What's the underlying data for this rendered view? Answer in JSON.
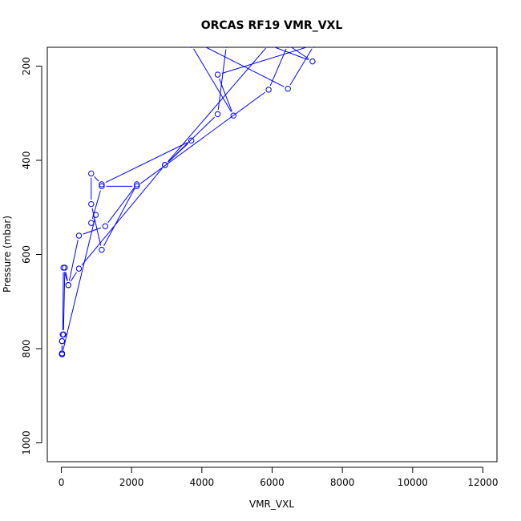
{
  "chart_data": {
    "type": "line",
    "title": "ORCAS RF19 VMR_VXL",
    "xlabel": "VMR_VXL",
    "ylabel": "Pressure (mbar)",
    "xlim": [
      -400,
      12400
    ],
    "ylim": [
      1040,
      160
    ],
    "y_inverted": true,
    "grid": false,
    "legend": "none",
    "x_ticks": [
      0,
      2000,
      4000,
      6000,
      8000,
      10000,
      12000
    ],
    "y_ticks": [
      200,
      400,
      600,
      800,
      1000
    ],
    "colors": {
      "series": "#0000ff",
      "axes": "#000000"
    },
    "markers": "open-circle",
    "series": [
      {
        "x": [
          3800,
          6450,
          7200,
          4450,
          4900,
          3700,
          4700,
          4450,
          2950,
          3700,
          1150,
          850,
          850,
          1150,
          2150,
          1250,
          500,
          200,
          60,
          40,
          20,
          20,
          20,
          980,
          850,
          1150,
          2150,
          5900,
          6450,
          7150,
          5900,
          2950,
          500,
          200,
          100,
          60,
          20,
          20
        ],
        "y": [
          148,
          248,
          155,
          218,
          305,
          155,
          155,
          302,
          410,
          358,
          451,
          428,
          493,
          590,
          451,
          540,
          560,
          665,
          628,
          770,
          784,
          810,
          812,
          516,
          533,
          455,
          455,
          250,
          155,
          190,
          155,
          410,
          630,
          665,
          628,
          770,
          784,
          812
        ]
      }
    ]
  }
}
